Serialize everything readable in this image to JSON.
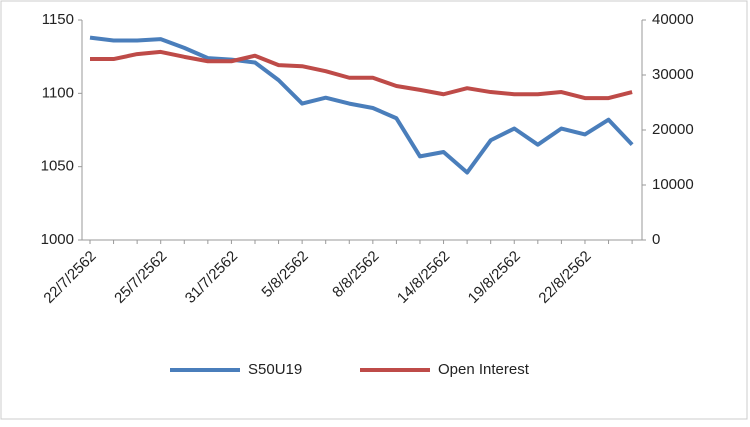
{
  "chart_data": {
    "type": "line",
    "categories": [
      "22/7/2562",
      null,
      null,
      "25/7/2562",
      null,
      null,
      "31/7/2562",
      null,
      null,
      "5/8/2562",
      null,
      null,
      "8/8/2562",
      null,
      null,
      "14/8/2562",
      null,
      null,
      "19/8/2562",
      null,
      null,
      "22/8/2562",
      null,
      null
    ],
    "series": [
      {
        "name": "S50U19",
        "color": "#4a7ebb",
        "values": [
          1138,
          1136,
          1136,
          1137,
          1131,
          1124,
          1123,
          1121,
          1109,
          1093,
          1097,
          1093,
          1090,
          1083,
          1057,
          1060,
          1046,
          1068,
          1076,
          1065,
          1076,
          1072,
          1082,
          1065
        ]
      },
      {
        "name": "Open Interest",
        "color": "#be4b48",
        "axis": "y2",
        "values": [
          32900,
          32900,
          33800,
          34200,
          33300,
          32500,
          32500,
          33500,
          31800,
          31600,
          30700,
          29500,
          29500,
          28000,
          27300,
          26500,
          27600,
          26900,
          26500,
          26500,
          26900,
          25800,
          25800,
          26900
        ]
      }
    ],
    "ylim": [
      1000,
      1150
    ],
    "yticks": [
      1000,
      1050,
      1100,
      1150
    ],
    "y2lim": [
      0,
      40000
    ],
    "y2ticks": [
      0,
      10000,
      20000,
      30000,
      40000
    ],
    "legend": "bottom"
  }
}
